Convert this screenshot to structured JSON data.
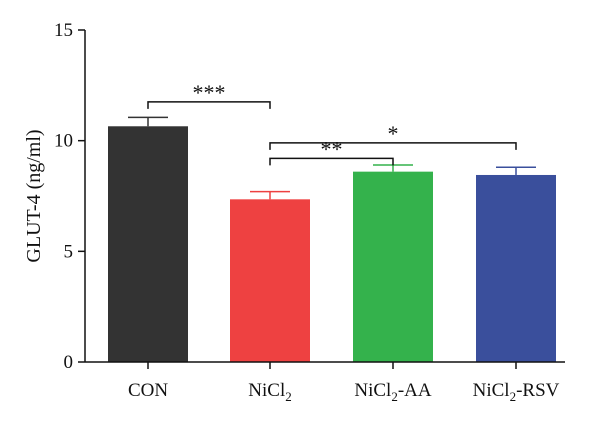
{
  "chart_data": {
    "type": "bar",
    "title": "",
    "xlabel": "",
    "ylabel": "GLUT-4 (ng/ml)",
    "ylim": [
      0,
      15
    ],
    "yticks": [
      0,
      5,
      10,
      15
    ],
    "grid": false,
    "categories": [
      {
        "base": "CON",
        "sub": "",
        "suffix": ""
      },
      {
        "base": "NiCl",
        "sub": "2",
        "suffix": ""
      },
      {
        "base": "NiCl",
        "sub": "2",
        "suffix": "-AA"
      },
      {
        "base": "NiCl",
        "sub": "2",
        "suffix": "-RSV"
      }
    ],
    "values": [
      10.65,
      7.35,
      8.6,
      8.45
    ],
    "errors": [
      0.4,
      0.35,
      0.3,
      0.35
    ],
    "colors": [
      "#333333",
      "#ee4141",
      "#34b24c",
      "#3a4f9c"
    ],
    "significance": [
      {
        "from": 0,
        "to": 1,
        "y": 11.75,
        "label": "***"
      },
      {
        "from": 1,
        "to": 2,
        "y": 9.2,
        "label": "**"
      },
      {
        "from": 1,
        "to": 3,
        "y": 9.9,
        "label": "*"
      }
    ]
  }
}
